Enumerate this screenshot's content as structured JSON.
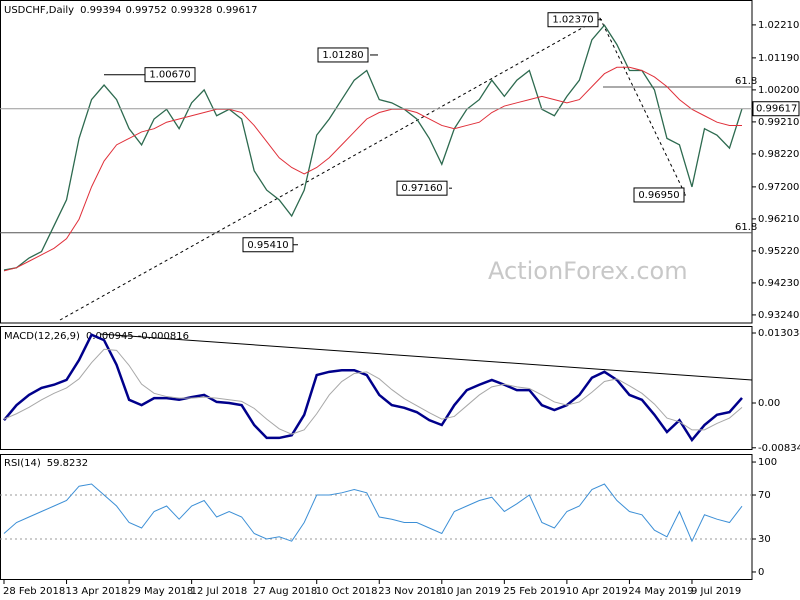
{
  "chart_data": [
    {
      "type": "line",
      "title": "USDCHF,Daily",
      "ohlc": [
        0.99394,
        0.99752,
        0.99328,
        0.99617
      ],
      "watermark": "ActionForex.com",
      "ylim": [
        0.9299,
        1.0298
      ],
      "yticks": [
        {
          "value": 1.0221,
          "label": "1.02210"
        },
        {
          "value": 1.0119,
          "label": "1.01190"
        },
        {
          "value": 1.002,
          "label": "1.00200"
        },
        {
          "value": 0.9921,
          "label": "0.99210"
        },
        {
          "value": 0.9822,
          "label": "0.98220"
        },
        {
          "value": 0.972,
          "label": "0.97200"
        },
        {
          "value": 0.9621,
          "label": "0.96210"
        },
        {
          "value": 0.9522,
          "label": "0.95220"
        },
        {
          "value": 0.9423,
          "label": "0.94230"
        },
        {
          "value": 0.9324,
          "label": "0.93240"
        }
      ],
      "series": [
        {
          "color": "#2d6a4f",
          "values": [
            0.9463,
            0.947,
            0.95,
            0.952,
            0.96,
            0.968,
            0.987,
            0.999,
            1.0035,
            0.999,
            0.99,
            0.985,
            0.993,
            0.996,
            0.99,
            0.998,
            1.002,
            0.994,
            0.996,
            0.993,
            0.977,
            0.971,
            0.968,
            0.963,
            0.971,
            0.988,
            0.993,
            0.999,
            1.005,
            1.008,
            0.999,
            0.998,
            0.996,
            0.993,
            0.987,
            0.979,
            0.99,
            0.996,
            0.999,
            1.005,
            1.0,
            1.005,
            1.008,
            0.996,
            0.994,
            1.0,
            1.005,
            1.0175,
            1.022,
            1.016,
            1.008,
            1.008,
            1.002,
            0.987,
            0.985,
            0.972,
            0.99,
            0.988,
            0.984,
            0.99617
          ]
        },
        {
          "color": "#e0303a",
          "values": [
            0.946,
            0.947,
            0.949,
            0.951,
            0.953,
            0.956,
            0.962,
            0.972,
            0.98,
            0.985,
            0.987,
            0.989,
            0.99,
            0.992,
            0.993,
            0.994,
            0.995,
            0.996,
            0.996,
            0.995,
            0.991,
            0.986,
            0.981,
            0.978,
            0.976,
            0.978,
            0.981,
            0.985,
            0.989,
            0.993,
            0.995,
            0.996,
            0.996,
            0.995,
            0.993,
            0.991,
            0.99,
            0.991,
            0.992,
            0.995,
            0.997,
            0.998,
            0.999,
            1.0,
            0.999,
            0.998,
            0.999,
            1.003,
            1.007,
            1.009,
            1.009,
            1.008,
            1.006,
            1.003,
            0.999,
            0.996,
            0.994,
            0.992,
            0.991,
            0.991
          ]
        }
      ],
      "annotations": [
        {
          "value": 1.0067,
          "label": "1.00670"
        },
        {
          "value": 1.0128,
          "label": "1.01280"
        },
        {
          "value": 1.0237,
          "label": "1.02370"
        },
        {
          "value": 0.9716,
          "label": "0.97160"
        },
        {
          "value": 0.9541,
          "label": "0.95410"
        },
        {
          "value": 0.9695,
          "label": "0.96950"
        }
      ],
      "levels": [
        {
          "value": 1.0029,
          "label": "61.8"
        },
        {
          "value": 0.9578,
          "label": "61.8"
        }
      ]
    },
    {
      "type": "line",
      "title": "MACD(12,26,9)",
      "readings": [
        0.000945,
        -0.000816
      ],
      "ylim": [
        -0.00875,
        0.01415
      ],
      "yticks": [
        0.013034,
        {
          "value": 0,
          "label": "0.00"
        },
        -0.00834
      ],
      "series": [
        {
          "color": "#00008b",
          "values": [
            -0.0032,
            -0.0004,
            0.0015,
            0.0028,
            0.0034,
            0.0043,
            0.008,
            0.0127,
            0.0117,
            0.0071,
            0.0006,
            -0.0004,
            0.0009,
            0.0009,
            0.0006,
            0.0011,
            0.0015,
            0.0002,
            0,
            -0.0004,
            -0.0041,
            -0.0065,
            -0.0065,
            -0.006,
            -0.0022,
            0.0052,
            0.0058,
            0.0061,
            0.0061,
            0.0052,
            0.0015,
            -0.0004,
            -0.0009,
            -0.0017,
            -0.0032,
            -0.0041,
            -0.0004,
            0.0024,
            0.0034,
            0.0043,
            0.0034,
            0.0024,
            0.0024,
            -0.0004,
            -0.0013,
            -0.0004,
            0.0015,
            0.0047,
            0.0058,
            0.0043,
            0.0015,
            0.0006,
            -0.0022,
            -0.0054,
            -0.0032,
            -0.0069,
            -0.0041,
            -0.0022,
            -0.0017,
            0.000945
          ]
        },
        {
          "color": "#a8a8a8",
          "values": [
            -0.003,
            -0.002,
            -0.0008,
            0.0006,
            0.0018,
            0.0028,
            0.0045,
            0.0075,
            0.01,
            0.0098,
            0.007,
            0.0035,
            0.0018,
            0.0012,
            0.0009,
            0.0009,
            0.0011,
            0.0009,
            0.0006,
            0.0003,
            -0.001,
            -0.003,
            -0.0048,
            -0.0058,
            -0.005,
            -0.002,
            0.0015,
            0.004,
            0.0055,
            0.0058,
            0.0045,
            0.0025,
            0.0008,
            -0.0005,
            -0.0018,
            -0.003,
            -0.0025,
            -0.0005,
            0.0015,
            0.003,
            0.0035,
            0.003,
            0.0027,
            0.0015,
            0.0002,
            -0.0004,
            0.0002,
            0.002,
            0.004,
            0.0045,
            0.0032,
            0.0018,
            -0.0002,
            -0.0028,
            -0.0035,
            -0.005,
            -0.005,
            -0.0038,
            -0.0028,
            -0.000816
          ]
        }
      ]
    },
    {
      "type": "line",
      "title": "RSI(14)",
      "readings": [
        59.8232
      ],
      "ylim": [
        -7.3,
        106.4
      ],
      "yticks": [
        100,
        70,
        30,
        0
      ],
      "levels": [
        70,
        30
      ],
      "categories": [
        "28 Feb 2018",
        null,
        null,
        null,
        null,
        "13 Apr 2018",
        null,
        null,
        null,
        null,
        "29 May 2018",
        null,
        null,
        null,
        null,
        "12 Jul 2018",
        null,
        null,
        null,
        null,
        "27 Aug 2018",
        null,
        null,
        null,
        null,
        "10 Oct 2018",
        null,
        null,
        null,
        null,
        "23 Nov 2018",
        null,
        null,
        null,
        null,
        "10 Jan 2019",
        null,
        null,
        null,
        null,
        "25 Feb 2019",
        null,
        null,
        null,
        null,
        "10 Apr 2019",
        null,
        null,
        null,
        null,
        "24 May 2019",
        null,
        null,
        null,
        null,
        "9 Jul 2019",
        null,
        null,
        null,
        null
      ],
      "series": [
        {
          "color": "#3c8fd6",
          "values": [
            35,
            45,
            50,
            55,
            60,
            65,
            78,
            80,
            70,
            60,
            45,
            40,
            55,
            60,
            48,
            60,
            65,
            50,
            55,
            50,
            35,
            30,
            32,
            28,
            45,
            70,
            70,
            72,
            75,
            72,
            50,
            48,
            45,
            45,
            40,
            35,
            55,
            60,
            65,
            68,
            55,
            62,
            70,
            45,
            40,
            55,
            60,
            75,
            80,
            65,
            55,
            52,
            38,
            32,
            55,
            28,
            52,
            48,
            45,
            59.8232
          ]
        }
      ]
    }
  ]
}
